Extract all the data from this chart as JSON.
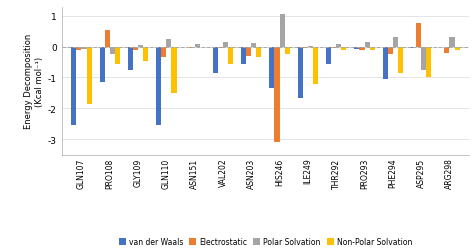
{
  "categories": [
    "GLN107",
    "PRO108",
    "GLY109",
    "GLN110",
    "ASN151",
    "VAL202",
    "ASN203",
    "HIS246",
    "ILE249",
    "THR292",
    "PRO293",
    "PHE294",
    "ASP295",
    "ARG298"
  ],
  "van_der_Waals": [
    -2.55,
    -1.15,
    -0.75,
    -2.55,
    -0.02,
    -0.85,
    -0.55,
    -1.35,
    -1.65,
    -0.55,
    -0.08,
    -1.05,
    -0.05,
    -0.02
  ],
  "electrostatic": [
    -0.1,
    0.55,
    -0.1,
    -0.35,
    -0.05,
    -0.05,
    -0.3,
    -3.1,
    -0.05,
    -0.05,
    -0.1,
    -0.25,
    0.75,
    -0.2
  ],
  "polar_solvation": [
    -0.08,
    -0.25,
    0.05,
    0.25,
    0.1,
    0.15,
    0.12,
    1.05,
    0.03,
    0.1,
    0.15,
    0.3,
    -0.75,
    0.3
  ],
  "non_polar_solvation": [
    -1.85,
    -0.55,
    -0.45,
    -1.5,
    -0.02,
    -0.55,
    -0.35,
    -0.25,
    -1.2,
    -0.1,
    -0.12,
    -0.85,
    -1.0,
    -0.1
  ],
  "bar_colors": {
    "van_der_Waals": "#4472C4",
    "electrostatic": "#ED7D31",
    "polar_solvation": "#A5A5A5",
    "non_polar_solvation": "#FFC000"
  },
  "ylabel": "Energy Decomposition\n(Kcal mol⁻¹)",
  "ylim": [
    -3.5,
    1.3
  ],
  "yticks": [
    -3,
    -2,
    -1,
    0,
    1
  ],
  "legend_labels": [
    "van der Waals",
    "Electrostatic",
    "Polar Solvation",
    "Non-Polar Solvation"
  ],
  "background_color": "#FFFFFF",
  "grid_color": "#D9D9D9",
  "bar_width": 0.18
}
